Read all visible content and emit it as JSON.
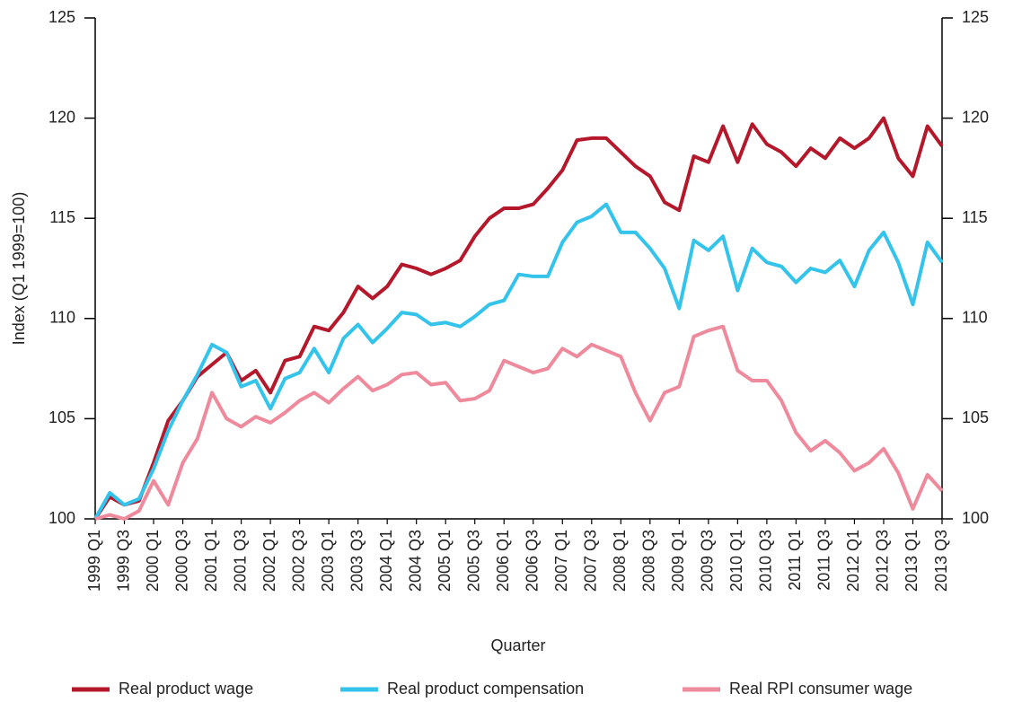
{
  "chart_data": {
    "type": "line",
    "y_label": "Index (Q1 1999=100)",
    "x_label": "Quarter",
    "categories": [
      "1999 Q1",
      null,
      "1999 Q3",
      null,
      "2000 Q1",
      null,
      "2000 Q3",
      null,
      "2001 Q1",
      null,
      "2001 Q3",
      null,
      "2002 Q1",
      null,
      "2002 Q3",
      null,
      "2003 Q1",
      null,
      "2003 Q3",
      null,
      "2004 Q1",
      null,
      "2004 Q3",
      null,
      "2005 Q1",
      null,
      "2005 Q3",
      null,
      "2006 Q1",
      null,
      "2006 Q3",
      null,
      "2007 Q1",
      null,
      "2007 Q3",
      null,
      "2008 Q1",
      null,
      "2008 Q3",
      null,
      "2009 Q1",
      null,
      "2009 Q3",
      null,
      "2010 Q1",
      null,
      "2010 Q3",
      null,
      "2011 Q1",
      null,
      "2011 Q3",
      null,
      "2012 Q1",
      null,
      "2012 Q3",
      null,
      "2013 Q1",
      null,
      "2013 Q3"
    ],
    "series": [
      {
        "name": "Real product wage",
        "color": "#b5182b",
        "values": [
          100,
          101.1,
          100.7,
          100.9,
          102.8,
          104.9,
          105.9,
          107.1,
          107.7,
          108.3,
          106.9,
          107.4,
          106.3,
          107.9,
          108.1,
          109.6,
          109.4,
          110.3,
          111.6,
          111.0,
          111.6,
          112.7,
          112.5,
          112.2,
          112.5,
          112.9,
          114.1,
          115.0,
          115.5,
          115.5,
          115.7,
          116.5,
          117.4,
          118.9,
          119.0,
          119.0,
          118.3,
          117.6,
          117.1,
          115.8,
          115.4,
          118.1,
          117.8,
          119.6,
          117.8,
          119.7,
          118.7,
          118.3,
          117.6,
          118.5,
          118.0,
          119.0,
          118.5,
          119.0,
          120.0,
          118.0,
          117.1,
          119.6,
          118.6
        ]
      },
      {
        "name": "Real product compensation",
        "color": "#34c3eb",
        "values": [
          100,
          101.3,
          100.7,
          101.0,
          102.5,
          104.4,
          105.9,
          107.2,
          108.7,
          108.3,
          106.6,
          106.9,
          105.5,
          107.0,
          107.3,
          108.5,
          107.3,
          109.0,
          109.7,
          108.8,
          109.5,
          110.3,
          110.2,
          109.7,
          109.8,
          109.6,
          110.1,
          110.7,
          110.9,
          112.2,
          112.1,
          112.1,
          113.8,
          114.8,
          115.1,
          115.7,
          114.3,
          114.3,
          113.5,
          112.5,
          110.5,
          113.9,
          113.4,
          114.1,
          111.4,
          113.5,
          112.8,
          112.6,
          111.8,
          112.5,
          112.3,
          112.9,
          111.6,
          113.4,
          114.3,
          112.8,
          110.7,
          113.8,
          112.8
        ]
      },
      {
        "name": "Real RPI consumer wage",
        "color": "#ee8a9c",
        "values": [
          100,
          100.2,
          100.0,
          100.4,
          101.9,
          100.7,
          102.8,
          104.0,
          106.3,
          105.0,
          104.6,
          105.1,
          104.8,
          105.3,
          105.9,
          106.3,
          105.8,
          106.5,
          107.1,
          106.4,
          106.7,
          107.2,
          107.3,
          106.7,
          106.8,
          105.9,
          106.0,
          106.4,
          107.9,
          107.6,
          107.3,
          107.5,
          108.5,
          108.1,
          108.7,
          108.4,
          108.1,
          106.3,
          104.9,
          106.3,
          106.6,
          109.1,
          109.4,
          109.6,
          107.4,
          106.9,
          106.9,
          105.9,
          104.3,
          103.4,
          103.9,
          103.3,
          102.4,
          102.8,
          103.5,
          102.3,
          100.5,
          102.2,
          101.4
        ]
      }
    ],
    "ylim": [
      100,
      125
    ],
    "yticks": [
      100,
      105,
      110,
      115,
      120,
      125
    ],
    "y2lim": [
      100,
      125
    ],
    "y2ticks": [
      100,
      105,
      110,
      115,
      120,
      125
    ],
    "grid": false,
    "legend": "bottom"
  }
}
